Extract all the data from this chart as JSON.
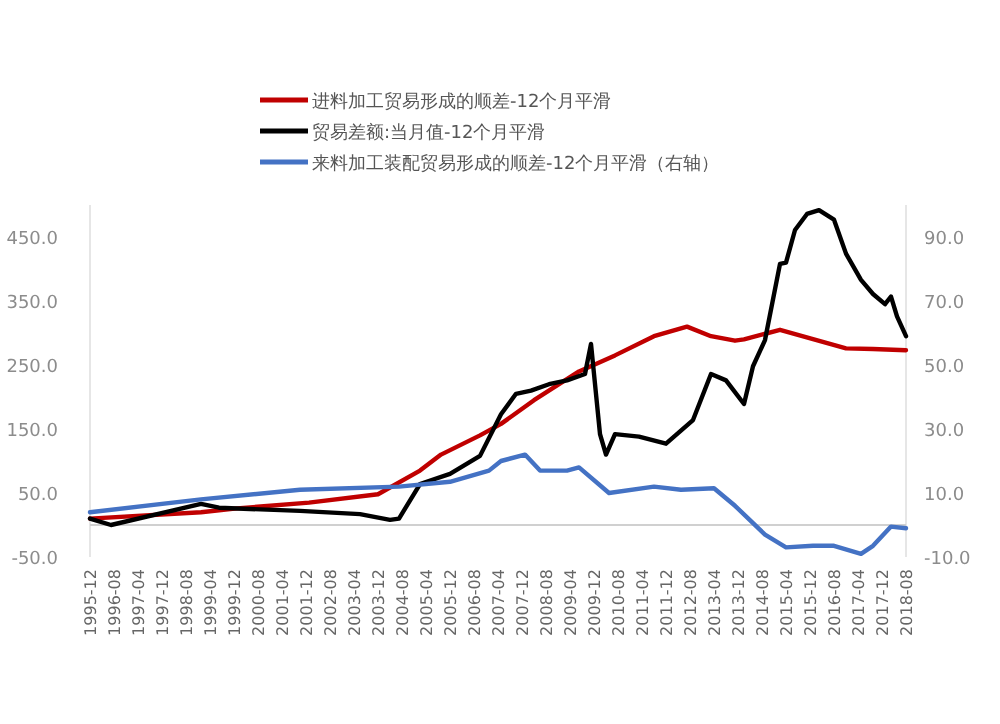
{
  "chart_data": {
    "type": "line",
    "legend": "top",
    "marker": "none",
    "line_style": "solid",
    "xlim": [
      "1995-12",
      "2018-08"
    ],
    "xticks": [
      "1995-12",
      "1996-08",
      "1997-04",
      "1997-12",
      "1998-08",
      "1999-04",
      "1999-12",
      "2000-08",
      "2001-04",
      "2001-12",
      "2002-08",
      "2003-04",
      "2003-12",
      "2004-08",
      "2005-04",
      "2005-12",
      "2006-08",
      "2007-04",
      "2007-12",
      "2008-08",
      "2009-04",
      "2009-12",
      "2010-08",
      "2011-04",
      "2011-12",
      "2012-08",
      "2013-04",
      "2013-12",
      "2014-08",
      "2015-04",
      "2015-12",
      "2016-08",
      "2017-04",
      "2017-12",
      "2018-08"
    ],
    "ylim": [
      -50,
      500
    ],
    "yticks": [
      {
        "value": -50,
        "label": "-50.0"
      },
      {
        "value": 50,
        "label": "50.0"
      },
      {
        "value": 150,
        "label": "150.0"
      },
      {
        "value": 250,
        "label": "250.0"
      },
      {
        "value": 350,
        "label": "350.0"
      },
      {
        "value": 450,
        "label": "450.0"
      }
    ],
    "y2lim": [
      -10,
      100
    ],
    "y2ticks": [
      {
        "value": -10,
        "label": "-10.0"
      },
      {
        "value": 10,
        "label": "10.0"
      },
      {
        "value": 30,
        "label": "30.0"
      },
      {
        "value": 50,
        "label": "50.0"
      },
      {
        "value": 70,
        "label": "70.0"
      },
      {
        "value": 90,
        "label": "90.0"
      }
    ],
    "series": [
      {
        "name": "进料加工贸易形成的顺差-12个月平滑",
        "color": "#c00000",
        "x": [
          "1995-12",
          "1999-01",
          "2000-01",
          "2002-01",
          "2003-12",
          "2005-02",
          "2005-09",
          "2006-10",
          "2007-05",
          "2008-04",
          "2009-07",
          "2010-07",
          "2011-08",
          "2012-07",
          "2013-03",
          "2013-11",
          "2014-02",
          "2015-02",
          "2016-12",
          "2017-09",
          "2018-08"
        ],
        "values": [
          10,
          20,
          26,
          35,
          48,
          85,
          110,
          140,
          158,
          195,
          240,
          265,
          295,
          310,
          295,
          288,
          290,
          305,
          276,
          275,
          273
        ]
      },
      {
        "name": "贸易差额:当月值-12个月平滑",
        "color": "#000000",
        "x": [
          "1995-12",
          "1996-07",
          "1999-01",
          "1999-07",
          "2001-10",
          "2003-06",
          "2004-04",
          "2004-07",
          "2005-02",
          "2005-12",
          "2006-10",
          "2007-05",
          "2007-10",
          "2008-03",
          "2008-09",
          "2009-03",
          "2009-09",
          "2009-11",
          "2010-02",
          "2010-04",
          "2010-07",
          "2011-03",
          "2011-12",
          "2012-09",
          "2013-03",
          "2013-08",
          "2014-02",
          "2014-05",
          "2014-09",
          "2015-02",
          "2015-04",
          "2015-07",
          "2015-11",
          "2016-03",
          "2016-08",
          "2016-12",
          "2017-05",
          "2017-09",
          "2018-01",
          "2018-03",
          "2018-05",
          "2018-08"
        ],
        "values": [
          10,
          0,
          33,
          27,
          22,
          17,
          8,
          10,
          64,
          80,
          108,
          173,
          205,
          210,
          220,
          226,
          236,
          283,
          142,
          110,
          142,
          138,
          127,
          164,
          236,
          226,
          189,
          248,
          289,
          408,
          410,
          461,
          486,
          492,
          477,
          424,
          383,
          361,
          345,
          357,
          326,
          295
        ]
      },
      {
        "name": "来料加工装配贸易形成的顺差-12个月平滑（右轴）",
        "color": "#4472c4",
        "axis": "y2",
        "x": [
          "1995-12",
          "1999-01",
          "2001-10",
          "2004-07",
          "2005-12",
          "2007-01",
          "2007-05",
          "2008-01",
          "2008-06",
          "2009-03",
          "2009-07",
          "2010-05",
          "2011-08",
          "2012-05",
          "2013-04",
          "2013-11",
          "2014-09",
          "2015-04",
          "2016-01",
          "2016-08",
          "2017-05",
          "2017-09",
          "2018-03",
          "2018-08"
        ],
        "values": [
          4,
          8,
          11,
          12,
          13.5,
          17,
          20,
          22,
          17,
          17,
          18,
          10,
          12,
          11,
          11.5,
          6,
          -3,
          -7,
          -6.5,
          -6.5,
          -9,
          -6.5,
          -0.5,
          -1
        ]
      }
    ]
  }
}
